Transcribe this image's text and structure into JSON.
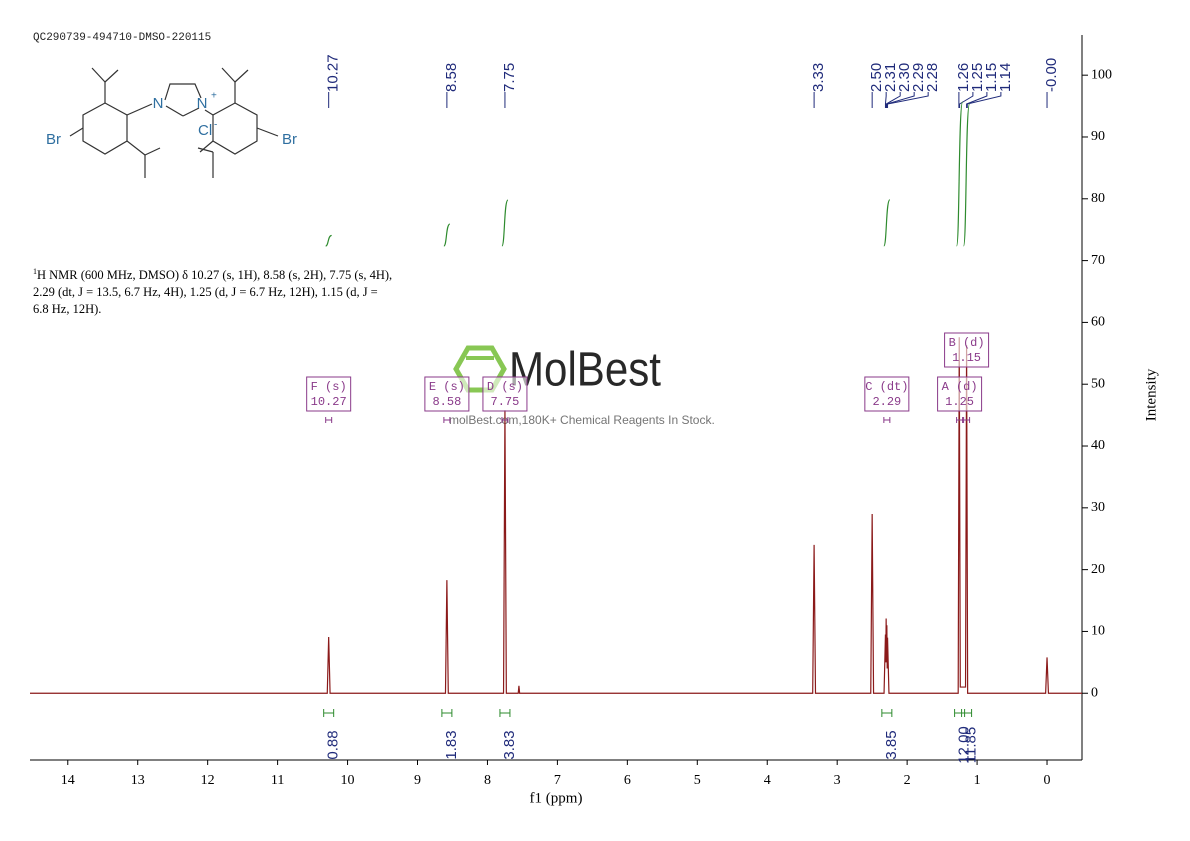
{
  "header": "QC290739-494710-DMSO-220115",
  "structure": {
    "atoms": [
      "N",
      "N",
      "+",
      "Cl",
      "-",
      "Br",
      "Br"
    ]
  },
  "description": {
    "sup": "1",
    "text": "H NMR (600 MHz, DMSO) δ 10.27 (s, 1H), 8.58 (s, 2H), 7.75 (s, 4H), 2.29 (dt, J = 13.5, 6.7 Hz, 4H), 1.25 (d, J = 6.7 Hz, 12H), 1.15 (d, J = 6.8 Hz, 12H)."
  },
  "watermark": {
    "brand": "MolBest",
    "tagline": "molBest.com,180K+ Chemical Reagents In Stock."
  },
  "chart_data": {
    "type": "nmr",
    "xlabel": "f1 (ppm)",
    "ylabel": "Intensity",
    "xlim": [
      14.54,
      -0.5
    ],
    "xticks": [
      14,
      13,
      12,
      11,
      10,
      9,
      8,
      7,
      6,
      5,
      4,
      3,
      2,
      1,
      0
    ],
    "ylim": [
      -10.8,
      106.5
    ],
    "yticks": [
      0,
      10,
      20,
      30,
      40,
      50,
      60,
      70,
      80,
      90,
      100
    ],
    "grid": false,
    "series": [
      {
        "name": "spectrum",
        "color": "#8b1a1a",
        "x": [
          14.54,
          10.29,
          10.27,
          10.25,
          8.6,
          8.58,
          8.56,
          7.77,
          7.75,
          7.73,
          7.56,
          7.55,
          7.54,
          3.35,
          3.33,
          3.31,
          2.52,
          2.5,
          2.48,
          2.33,
          2.31,
          2.305,
          2.3,
          2.295,
          2.29,
          2.285,
          2.28,
          2.26,
          1.27,
          1.255,
          1.24,
          1.165,
          1.15,
          1.135,
          0.02,
          0,
          -0.02,
          -0.5
        ],
        "values": [
          0,
          0,
          9.1,
          0,
          0,
          18.3,
          0,
          0,
          45.8,
          0,
          0,
          1.2,
          0,
          0,
          24,
          0,
          0,
          29,
          0,
          0,
          9.5,
          5,
          12.1,
          5,
          11,
          4,
          9,
          0,
          0,
          57.6,
          1,
          1,
          56.3,
          0,
          0,
          5.8,
          0,
          0
        ]
      }
    ],
    "peak_labels": [
      10.27,
      8.58,
      7.75,
      3.33,
      {
        "value": 2.5,
        "label": "2.50"
      },
      2.31,
      {
        "value": 2.3,
        "label": "2.30"
      },
      2.29,
      2.28,
      1.26,
      1.25,
      1.15,
      1.14,
      {
        "value": 0,
        "label": "-0.00"
      }
    ],
    "peak_label_color": "#1f2a7a",
    "integrals": {
      "color": "#2e8b2e",
      "x": [
        10.27,
        8.58,
        7.75,
        2.29,
        1.25,
        1.15
      ],
      "values": [
        0.88,
        1.83,
        3.83,
        3.85,
        12,
        11.85
      ],
      "value_labels": [
        "0.88",
        "1.83",
        "3.83",
        "3.85",
        "12.00",
        "11.85"
      ]
    },
    "multiplets": {
      "color": "#8a3a8a",
      "names": [
        "F (s)",
        "E (s)",
        "D (s)",
        "C (dt)",
        "A (d)",
        "B (d)"
      ],
      "shifts": [
        10.27,
        8.58,
        7.75,
        2.29,
        1.25,
        1.15
      ]
    }
  }
}
